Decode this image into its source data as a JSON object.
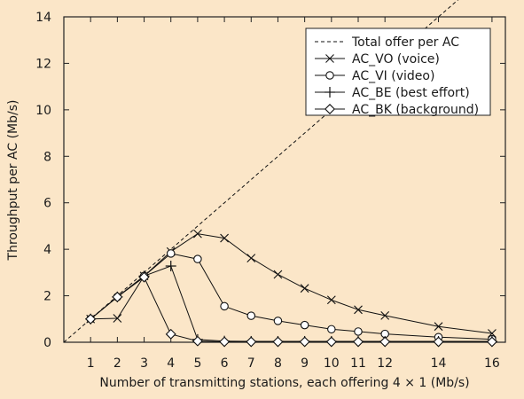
{
  "chart_data": {
    "type": "line",
    "xlabel": "Number of transmitting stations, each offering 4 × 1 (Mb/s)",
    "ylabel": "Throughput per AC (Mb/s)",
    "xlim": [
      0,
      16.5
    ],
    "ylim": [
      0,
      14
    ],
    "x_ticks": [
      1,
      2,
      3,
      4,
      5,
      6,
      7,
      8,
      9,
      10,
      11,
      12,
      14,
      16
    ],
    "y_ticks": [
      0,
      2,
      4,
      6,
      8,
      10,
      12,
      14
    ],
    "grid": false,
    "legend_position": "top-right",
    "series": [
      {
        "name": "Total offer per AC",
        "marker": "none",
        "line": "dashed",
        "x": [
          0,
          16
        ],
        "y": [
          0,
          16
        ]
      },
      {
        "name": "AC_VO (voice)",
        "marker": "x",
        "line": "solid",
        "x": [
          1,
          2,
          3,
          4,
          5,
          6,
          7,
          8,
          9,
          10,
          11,
          12,
          14,
          16
        ],
        "y": [
          1.0,
          1.03,
          2.85,
          3.9,
          4.67,
          4.48,
          3.62,
          2.92,
          2.32,
          1.82,
          1.4,
          1.15,
          0.68,
          0.38
        ]
      },
      {
        "name": "AC_VI (video)",
        "marker": "circle",
        "line": "solid",
        "x": [
          1,
          2,
          3,
          4,
          5,
          6,
          7,
          8,
          9,
          10,
          11,
          12,
          14,
          16
        ],
        "y": [
          1.0,
          1.95,
          2.85,
          3.82,
          3.58,
          1.55,
          1.14,
          0.92,
          0.74,
          0.56,
          0.46,
          0.36,
          0.22,
          0.13
        ]
      },
      {
        "name": "AC_BE (best effort)",
        "marker": "plus",
        "line": "solid",
        "x": [
          1,
          2,
          3,
          4,
          5,
          6,
          7,
          8,
          9,
          10,
          11,
          12,
          14,
          16
        ],
        "y": [
          1.0,
          1.95,
          2.85,
          3.28,
          0.12,
          0.05,
          0.04,
          0.04,
          0.04,
          0.04,
          0.04,
          0.04,
          0.04,
          0.04
        ]
      },
      {
        "name": "AC_BK (background)",
        "marker": "diamond",
        "line": "solid",
        "x": [
          1,
          2,
          3,
          4,
          5,
          6,
          7,
          8,
          9,
          10,
          11,
          12,
          14,
          16
        ],
        "y": [
          1.0,
          1.95,
          2.8,
          0.35,
          0.05,
          0.02,
          0.02,
          0.02,
          0.02,
          0.02,
          0.02,
          0.02,
          0.02,
          0.02
        ]
      }
    ]
  }
}
